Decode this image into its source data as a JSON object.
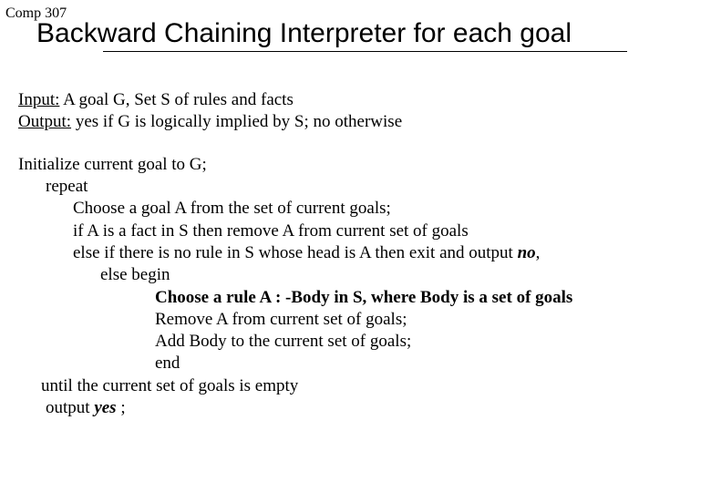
{
  "course_label": "Comp 307",
  "title": "Backward Chaining Interpreter for each goal",
  "input_label": "Input:",
  "input_text": "  A goal G, Set S of rules and facts",
  "output_label": "Output:",
  "output_text1": " yes  if G is logically implied by S;   no    otherwise",
  "line_init": "Initialize current goal to G;",
  "line_repeat": "repeat",
  "line_choose": "Choose a goal A from the set of current goals;",
  "line_if": "if A is a fact in S then remove A from current set of goals",
  "line_elseif_pre": "else if there is no rule in S whose head is A then exit and output ",
  "no_text": "no",
  "comma": ",",
  "line_elsebegin": "else   begin",
  "line_choose_rule": "Choose a rule A : -Body in S, where Body is a set of goals",
  "line_remove": "Remove A from current set of goals;",
  "line_addbody": "Add Body to the current set of goals;",
  "line_end": "end",
  "line_until": "until  the current  set of goals is empty",
  "line_output_pre": "output ",
  "yes_text": "yes",
  "semicolon": " ;"
}
